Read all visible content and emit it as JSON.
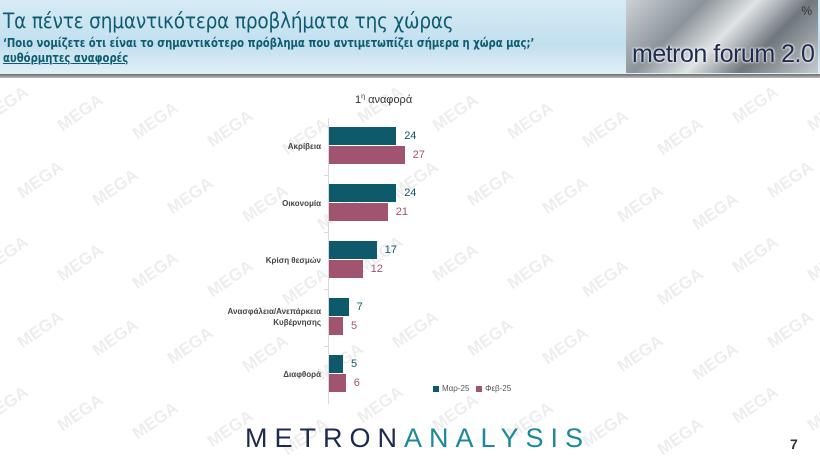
{
  "header": {
    "title": "Τα πέντε σημαντικότερα προβλήματα της χώρας",
    "question": "‘Ποιο νομίζετε ότι είναι το σημαντικότερο πρόβλημα που αντιμετωπίζει σήμερα η χώρα μας;’",
    "note": "αυθόρμητες αναφορές",
    "logo_text": "metron forum 2.0",
    "logo_symbol": "%"
  },
  "watermark": "MEGA",
  "chart_data": {
    "type": "bar",
    "orientation": "horizontal",
    "title": "1η αναφορά",
    "categories": [
      "Ακρίβεια",
      "Οικονομία",
      "Κρίση θεσμών",
      "Ανασφάλεια/Ανεπάρκεια Κυβέρνησης",
      "Διαφθορά"
    ],
    "series": [
      {
        "name": "Μαρ-25",
        "color": "#0e5a6b",
        "values": [
          24,
          24,
          17,
          7,
          5
        ]
      },
      {
        "name": "Φεβ-25",
        "color": "#a0546f",
        "values": [
          27,
          21,
          12,
          5,
          6
        ]
      }
    ],
    "legend_position": "bottom-right",
    "grid": false
  },
  "footer": {
    "brand_a": "METRON",
    "brand_b": "ANALYSIS",
    "page": "7"
  }
}
